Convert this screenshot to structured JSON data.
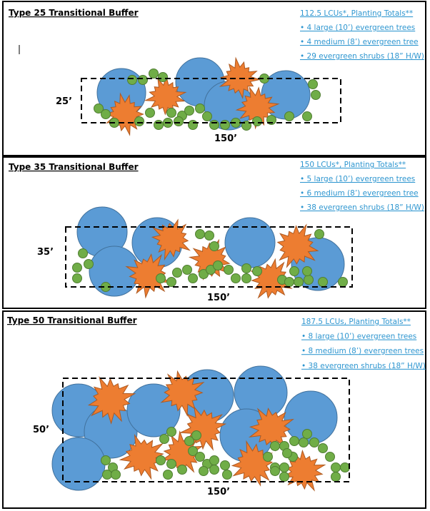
{
  "panels": [
    {
      "title": "Type 25 Transitional Buffer",
      "totals": "112.5 LCUs*, Planting Totals**",
      "items": [
        "• 4 large (10’) evergreen trees",
        "• 4 medium (8’) evergreen tree",
        "• 29 evergreen shrubs (18” H/W)"
      ],
      "depth": "25’",
      "length": "150’"
    },
    {
      "title": "Type 35 Transitional Buffer",
      "totals": "150 LCUs*, Planting Totals**",
      "items": [
        "• 5 large (10’) evergreen trees",
        "• 6 medium (8’) evergreen tree",
        "• 38 evergreen shrubs (18” H/W)"
      ],
      "depth": "35’",
      "length": "150’"
    },
    {
      "title": "Type 50 Transitional Buffer",
      "totals": "187.5 LCUs, Planting Totals**",
      "items": [
        "• 8 large (10’) evergreen trees",
        "• 8 medium (8’) evergreen trees",
        "• 38 evergreen shrubs (18” H/W)"
      ],
      "depth": "50’",
      "length": "150’"
    }
  ]
}
